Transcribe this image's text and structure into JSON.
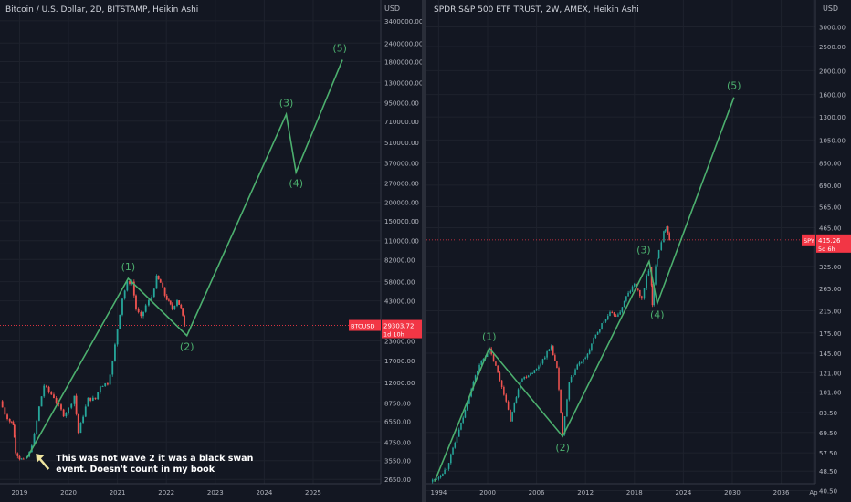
{
  "colors": {
    "background": "#131722",
    "grid": "#1e222d",
    "wave": "#4caf6e",
    "up": "#26a69a",
    "down": "#ef5350",
    "price_tag": "#f23645",
    "axis_text": "#b2b5be",
    "annotation_arrow": "#f0e6a0"
  },
  "icons": {
    "annotation_arrow": "arrow-up-left-icon"
  },
  "chart_data": [
    {
      "type": "candlestick",
      "candle_style": "Heikin Ashi",
      "title": "Bitcoin / U.S. Dollar, 2D, BITSTAMP, Heikin Ashi",
      "currency": "USD",
      "y_scale": "log",
      "ylim": [
        2000,
        4200000
      ],
      "xlim": [
        2018.6,
        2026.4
      ],
      "y_ticks": [
        "3400000.00",
        "2400000.00",
        "1800000.00",
        "1300000.00",
        "950000.00",
        "710000.00",
        "510000.00",
        "370000.00",
        "270000.00",
        "200000.00",
        "150000.00",
        "110000.00",
        "82000.00",
        "58000.00",
        "43000.00",
        "23000.00",
        "17000.00",
        "12000.00",
        "8750.00",
        "6550.00",
        "4750.00",
        "3550.00",
        "2650.00"
      ],
      "x_ticks": [
        "2019",
        "2020",
        "2021",
        "2022",
        "2023",
        "2024",
        "2025"
      ],
      "last_price": {
        "symbol": "BTCUSD",
        "value": "29303.72",
        "countdown": "1d 10h"
      },
      "price_path": [
        {
          "x": 2018.6,
          "y": 9000
        },
        {
          "x": 2018.7,
          "y": 7400
        },
        {
          "x": 2018.8,
          "y": 6600
        },
        {
          "x": 2018.87,
          "y": 6300
        },
        {
          "x": 2018.92,
          "y": 4100
        },
        {
          "x": 2019.0,
          "y": 3700
        },
        {
          "x": 2019.08,
          "y": 3550
        },
        {
          "x": 2019.2,
          "y": 4000
        },
        {
          "x": 2019.3,
          "y": 5300
        },
        {
          "x": 2019.4,
          "y": 8200
        },
        {
          "x": 2019.5,
          "y": 11500
        },
        {
          "x": 2019.6,
          "y": 10400
        },
        {
          "x": 2019.7,
          "y": 9600
        },
        {
          "x": 2019.8,
          "y": 8300
        },
        {
          "x": 2019.9,
          "y": 7300
        },
        {
          "x": 2020.0,
          "y": 8000
        },
        {
          "x": 2020.12,
          "y": 9800
        },
        {
          "x": 2020.2,
          "y": 5500
        },
        {
          "x": 2020.3,
          "y": 7200
        },
        {
          "x": 2020.4,
          "y": 9300
        },
        {
          "x": 2020.55,
          "y": 9300
        },
        {
          "x": 2020.65,
          "y": 11500
        },
        {
          "x": 2020.8,
          "y": 11900
        },
        {
          "x": 2020.9,
          "y": 16500
        },
        {
          "x": 2021.0,
          "y": 28000
        },
        {
          "x": 2021.1,
          "y": 45000
        },
        {
          "x": 2021.2,
          "y": 57000
        },
        {
          "x": 2021.3,
          "y": 58000
        },
        {
          "x": 2021.38,
          "y": 38000
        },
        {
          "x": 2021.48,
          "y": 33000
        },
        {
          "x": 2021.58,
          "y": 40000
        },
        {
          "x": 2021.7,
          "y": 46000
        },
        {
          "x": 2021.8,
          "y": 62000
        },
        {
          "x": 2021.88,
          "y": 57000
        },
        {
          "x": 2021.97,
          "y": 47000
        },
        {
          "x": 2022.05,
          "y": 42000
        },
        {
          "x": 2022.12,
          "y": 38000
        },
        {
          "x": 2022.22,
          "y": 44000
        },
        {
          "x": 2022.3,
          "y": 38000
        },
        {
          "x": 2022.37,
          "y": 29303.72
        }
      ],
      "waves": [
        {
          "label": "(1)",
          "x": 2021.22,
          "y": 61000
        },
        {
          "label": "(2)",
          "x": 2022.42,
          "y": 25000
        },
        {
          "label": "(3)",
          "x": 2024.45,
          "y": 790000
        },
        {
          "label": "(4)",
          "x": 2024.65,
          "y": 320000
        },
        {
          "label": "(5)",
          "x": 2025.6,
          "y": 1850000
        }
      ],
      "wave_start": {
        "x": 2019.15,
        "y": 3700
      },
      "annotation": {
        "text_lines": [
          "This was not wave 2 it was a black swan",
          "event.  Doesn't count in my book"
        ]
      }
    },
    {
      "type": "candlestick",
      "candle_style": "Heikin Ashi",
      "title": "SPDR S&P 500 ETF TRUST, 2W, AMEX, Heikin Ashi",
      "currency": "USD",
      "y_scale": "log",
      "ylim": [
        38,
        3600
      ],
      "xlim": [
        1992.5,
        2040.3
      ],
      "y_ticks": [
        "3000.00",
        "2500.00",
        "2000.00",
        "1600.00",
        "1300.00",
        "1050.00",
        "850.00",
        "690.00",
        "565.00",
        "465.00",
        "325.00",
        "265.00",
        "215.00",
        "175.00",
        "145.00",
        "121.00",
        "101.00",
        "83.50",
        "69.50",
        "57.50",
        "48.50",
        "40.50"
      ],
      "x_ticks": [
        "1994",
        "2000",
        "2006",
        "2012",
        "2018",
        "2024",
        "2030",
        "2036",
        "Ap"
      ],
      "last_price": {
        "symbol": "SPY",
        "value": "415.26",
        "countdown": "5d 6h"
      },
      "price_path": [
        {
          "x": 1993.0,
          "y": 44
        },
        {
          "x": 1994.0,
          "y": 46
        },
        {
          "x": 1995.0,
          "y": 50
        },
        {
          "x": 1996.0,
          "y": 63
        },
        {
          "x": 1997.0,
          "y": 80
        },
        {
          "x": 1998.0,
          "y": 105
        },
        {
          "x": 1999.0,
          "y": 130
        },
        {
          "x": 2000.2,
          "y": 150
        },
        {
          "x": 2001.0,
          "y": 128
        },
        {
          "x": 2002.0,
          "y": 100
        },
        {
          "x": 2002.8,
          "y": 78
        },
        {
          "x": 2004.0,
          "y": 113
        },
        {
          "x": 2006.0,
          "y": 125
        },
        {
          "x": 2007.8,
          "y": 155
        },
        {
          "x": 2008.5,
          "y": 125
        },
        {
          "x": 2009.2,
          "y": 68
        },
        {
          "x": 2010.0,
          "y": 110
        },
        {
          "x": 2011.0,
          "y": 130
        },
        {
          "x": 2012.0,
          "y": 138
        },
        {
          "x": 2013.0,
          "y": 165
        },
        {
          "x": 2014.0,
          "y": 190
        },
        {
          "x": 2015.0,
          "y": 210
        },
        {
          "x": 2016.0,
          "y": 205
        },
        {
          "x": 2017.0,
          "y": 245
        },
        {
          "x": 2018.0,
          "y": 275
        },
        {
          "x": 2018.9,
          "y": 240
        },
        {
          "x": 2019.5,
          "y": 295
        },
        {
          "x": 2020.0,
          "y": 325
        },
        {
          "x": 2020.2,
          "y": 225
        },
        {
          "x": 2020.6,
          "y": 330
        },
        {
          "x": 2021.0,
          "y": 380
        },
        {
          "x": 2021.6,
          "y": 445
        },
        {
          "x": 2021.95,
          "y": 475
        },
        {
          "x": 2022.3,
          "y": 415.26
        }
      ],
      "waves": [
        {
          "label": "(1)",
          "x": 2000.2,
          "y": 152
        },
        {
          "label": "(2)",
          "x": 2009.2,
          "y": 67
        },
        {
          "label": "(3)",
          "x": 2019.8,
          "y": 340
        },
        {
          "label": "(4)",
          "x": 2020.8,
          "y": 230
        },
        {
          "label": "(5)",
          "x": 2030.2,
          "y": 1560
        }
      ],
      "wave_start": {
        "x": 1993.5,
        "y": 44
      }
    }
  ]
}
